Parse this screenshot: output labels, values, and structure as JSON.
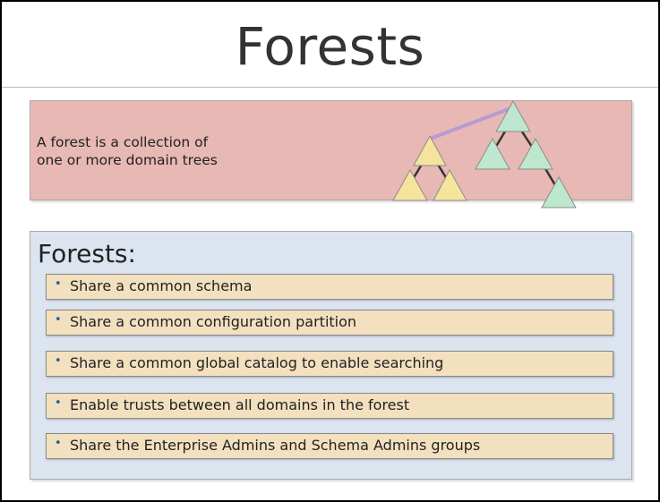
{
  "title": "Forests",
  "definition": {
    "line1": "A forest is a collection of",
    "line2": "one or more domain trees"
  },
  "list": {
    "heading": "Forests:",
    "items": [
      "Share a common schema",
      "Share a common configuration partition",
      "Share a common global catalog to enable searching",
      "Enable trusts between all domains in the forest",
      "Share the Enterprise Admins and Schema Admins groups"
    ]
  },
  "colors": {
    "definition_bg": "#e7b8b4",
    "list_bg": "#dbe4ef",
    "item_bg": "#f3e0bf",
    "tree_yellow": "#f5e49c",
    "tree_green": "#bde8cf",
    "trust_link": "#b79ad8"
  },
  "icons": [
    "forest-diagram-icon",
    "bullet-icon"
  ]
}
